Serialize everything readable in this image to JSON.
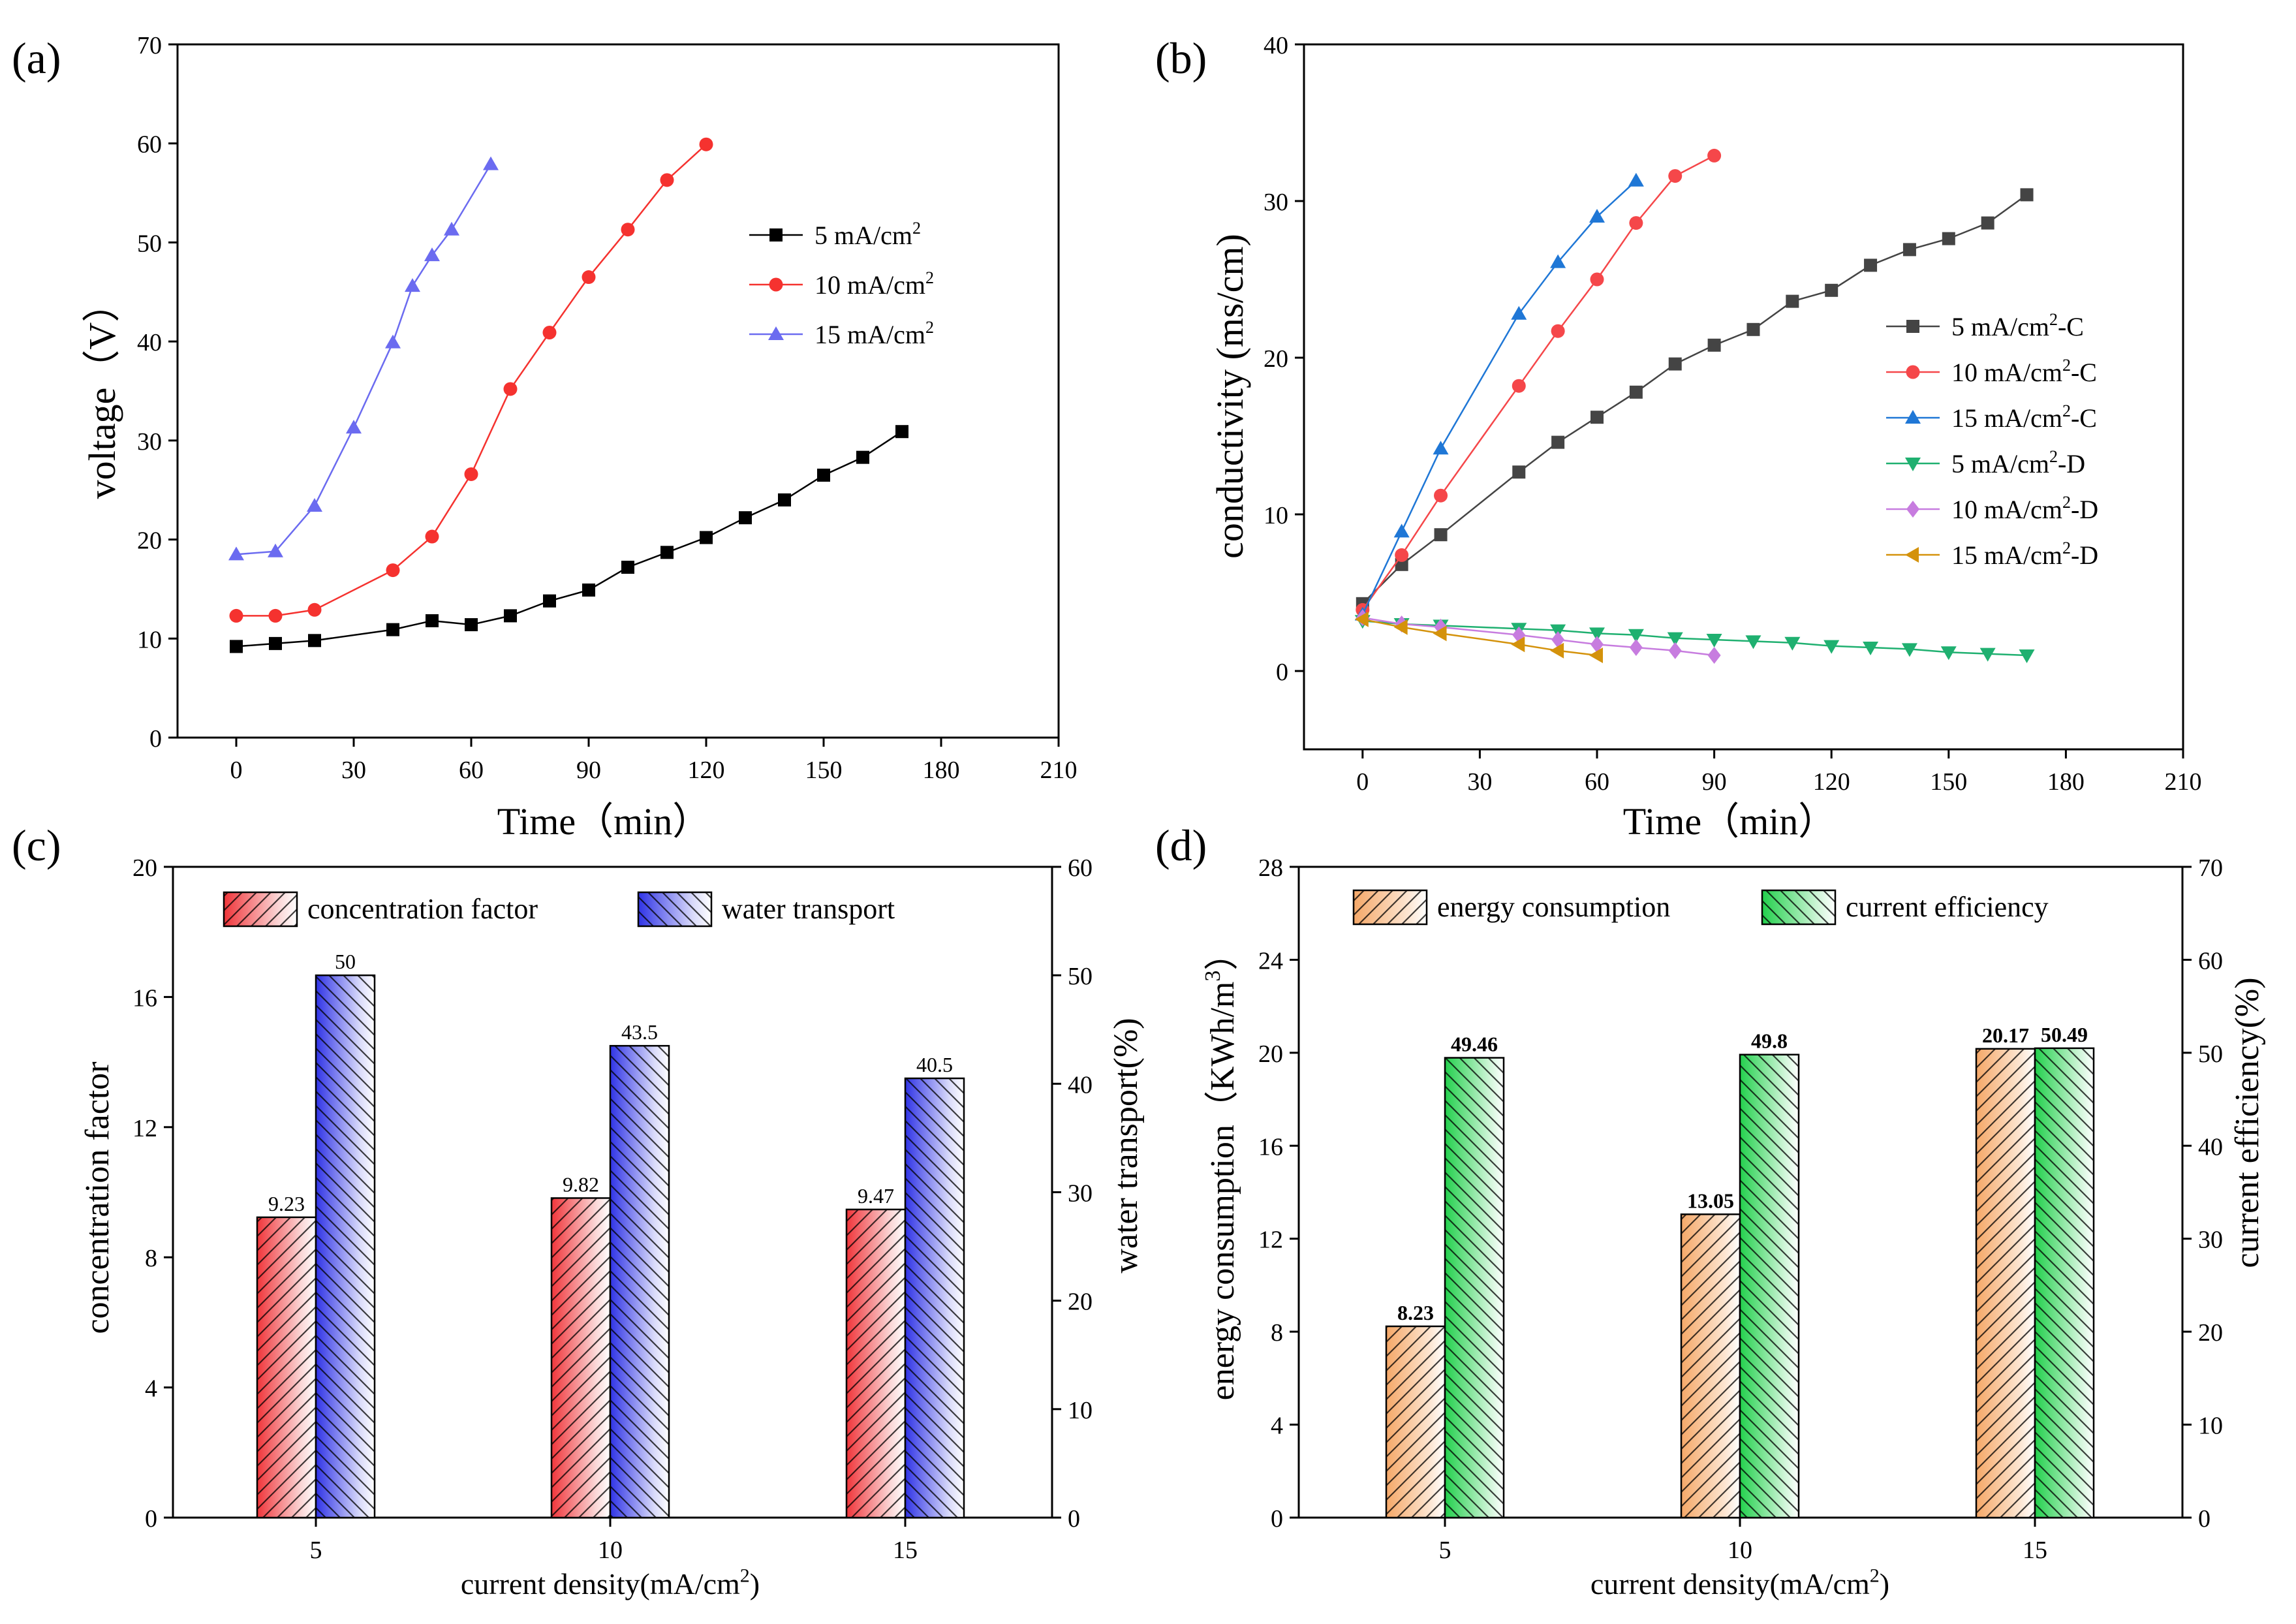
{
  "chart_data": [
    {
      "panel": "(a)",
      "type": "line",
      "xlabel": "Time（min）",
      "ylabel": "voltage（V）",
      "xlim": [
        -15,
        210
      ],
      "ylim": [
        0,
        70
      ],
      "xticks": [
        "0",
        "30",
        "60",
        "90",
        "120",
        "150",
        "180",
        "210"
      ],
      "yticks": [
        "0",
        "10",
        "20",
        "30",
        "40",
        "50",
        "60",
        "70"
      ],
      "legend_position": "right",
      "series": [
        {
          "name": "5 mA/cm",
          "sup": "2",
          "color": "#000000",
          "marker": "square",
          "x": [
            0,
            10,
            20,
            40,
            50,
            60,
            70,
            80,
            90,
            100,
            110,
            120,
            130,
            140,
            150,
            160,
            170
          ],
          "y": [
            9.2,
            9.5,
            9.8,
            10.9,
            11.8,
            11.4,
            12.3,
            13.8,
            14.9,
            17.2,
            18.7,
            20.2,
            22.2,
            24.0,
            26.5,
            28.3,
            30.9
          ]
        },
        {
          "name": "10 mA/cm",
          "sup": "2",
          "color": "#f5322f",
          "marker": "circle",
          "x": [
            0,
            10,
            20,
            40,
            50,
            60,
            70,
            80,
            90,
            100,
            110,
            120
          ],
          "y": [
            12.3,
            12.3,
            12.9,
            16.9,
            20.3,
            26.6,
            35.2,
            40.9,
            46.5,
            51.3,
            56.3,
            59.9
          ]
        },
        {
          "name": "15 mA/cm",
          "sup": "2",
          "color": "#6b6bf0",
          "marker": "triangle",
          "x": [
            0,
            10,
            20,
            30,
            40,
            45,
            50,
            55,
            65
          ],
          "y": [
            18.5,
            18.8,
            23.4,
            31.3,
            39.9,
            45.6,
            48.7,
            51.3,
            57.9
          ]
        }
      ]
    },
    {
      "panel": "(b)",
      "type": "line",
      "xlabel": "Time（min）",
      "ylabel": "conductivity (ms/cm)",
      "xlim": [
        -15,
        210
      ],
      "ylim": [
        -5,
        40
      ],
      "xticks": [
        "0",
        "30",
        "60",
        "90",
        "120",
        "150",
        "180",
        "210"
      ],
      "yticks": [
        "0",
        "10",
        "20",
        "30",
        "40"
      ],
      "legend_position": "right",
      "series": [
        {
          "name": "5 mA/cm",
          "sup": "2",
          "suffix": "-C",
          "color": "#444444",
          "marker": "square",
          "x": [
            0,
            10,
            20,
            40,
            50,
            60,
            70,
            80,
            90,
            100,
            110,
            120,
            130,
            140,
            150,
            160,
            170
          ],
          "y": [
            4.3,
            6.8,
            8.7,
            12.7,
            14.6,
            16.2,
            17.8,
            19.6,
            20.8,
            21.8,
            23.6,
            24.3,
            25.9,
            26.9,
            27.6,
            28.6,
            30.4
          ]
        },
        {
          "name": "10 mA/cm",
          "sup": "2",
          "suffix": "-C",
          "color": "#f5474a",
          "marker": "circle",
          "x": [
            0,
            10,
            20,
            40,
            50,
            60,
            70,
            80,
            90
          ],
          "y": [
            3.9,
            7.4,
            11.2,
            18.2,
            21.7,
            25.0,
            28.6,
            31.6,
            32.9
          ]
        },
        {
          "name": "15 mA/cm",
          "sup": "2",
          "suffix": "-C",
          "color": "#1f77d6",
          "marker": "triangle",
          "x": [
            0,
            10,
            20,
            40,
            50,
            60,
            70
          ],
          "y": [
            3.6,
            8.9,
            14.2,
            22.8,
            26.1,
            29.0,
            31.3
          ]
        },
        {
          "name": "5 mA/cm",
          "sup": "2",
          "suffix": "-D",
          "color": "#1fb070",
          "marker": "triangle-down",
          "x": [
            0,
            10,
            20,
            40,
            50,
            60,
            70,
            80,
            90,
            100,
            110,
            120,
            130,
            140,
            150,
            160,
            170
          ],
          "y": [
            3.2,
            3.0,
            2.9,
            2.7,
            2.6,
            2.4,
            2.3,
            2.1,
            2.0,
            1.9,
            1.8,
            1.6,
            1.5,
            1.4,
            1.2,
            1.1,
            1.0
          ]
        },
        {
          "name": "10 mA/cm",
          "sup": "2",
          "suffix": "-D",
          "color": "#c77cdf",
          "marker": "diamond",
          "x": [
            0,
            10,
            20,
            40,
            50,
            60,
            70,
            80,
            90
          ],
          "y": [
            3.4,
            3.0,
            2.8,
            2.3,
            2.0,
            1.7,
            1.5,
            1.3,
            1.0
          ]
        },
        {
          "name": "15 mA/cm",
          "sup": "2",
          "suffix": "-D",
          "color": "#d4920b",
          "marker": "triangle-left",
          "x": [
            0,
            10,
            20,
            40,
            50,
            60
          ],
          "y": [
            3.3,
            2.8,
            2.4,
            1.7,
            1.3,
            1.0
          ]
        }
      ]
    },
    {
      "panel": "(c)",
      "type": "bar",
      "xlabel": "current density(mA/cm",
      "xlabel_sup": "2",
      "xlabel_end": ")",
      "ylabel": "concentration factor",
      "ylabel_right": "water transport(%)",
      "categories": [
        "5",
        "10",
        "15"
      ],
      "ylim": [
        0,
        20
      ],
      "ylim_right": [
        0,
        60
      ],
      "yticks": [
        "0",
        "4",
        "8",
        "12",
        "16",
        "20"
      ],
      "yticks_right": [
        "0",
        "10",
        "20",
        "30",
        "40",
        "50",
        "60"
      ],
      "legend_position": "top",
      "series": [
        {
          "name": "concentration factor",
          "axis": "left",
          "color": "#f0353a",
          "values": [
            9.23,
            9.82,
            9.47
          ],
          "labels": [
            "9.23",
            "9.82",
            "9.47"
          ]
        },
        {
          "name": "water transport",
          "axis": "right",
          "color": "#2f33e6",
          "values": [
            50,
            43.5,
            40.5
          ],
          "labels": [
            "50",
            "43.5",
            "40.5"
          ]
        }
      ]
    },
    {
      "panel": "(d)",
      "type": "bar",
      "xlabel": "current density(mA/cm",
      "xlabel_sup": "2",
      "xlabel_end": ")",
      "ylabel": "energy consumption（KWh/m",
      "ylabel_sup": "3",
      "ylabel_end": "）",
      "ylabel_right": "current efficiency(%)",
      "categories": [
        "5",
        "10",
        "15"
      ],
      "ylim": [
        0,
        28
      ],
      "ylim_right": [
        0,
        70
      ],
      "yticks": [
        "0",
        "4",
        "8",
        "12",
        "16",
        "20",
        "24",
        "28"
      ],
      "yticks_right": [
        "0",
        "10",
        "20",
        "30",
        "40",
        "50",
        "60",
        "70"
      ],
      "legend_position": "top",
      "series": [
        {
          "name": "energy consumption",
          "axis": "left",
          "color": "#f5a868",
          "values": [
            8.23,
            13.05,
            20.17
          ],
          "labels": [
            "8.23",
            "13.05",
            "20.17"
          ]
        },
        {
          "name": "current efficiency",
          "axis": "right",
          "color": "#22d04c",
          "values": [
            49.46,
            49.8,
            50.49
          ],
          "labels": [
            "49.46",
            "49.8",
            "50.49"
          ]
        }
      ]
    }
  ]
}
